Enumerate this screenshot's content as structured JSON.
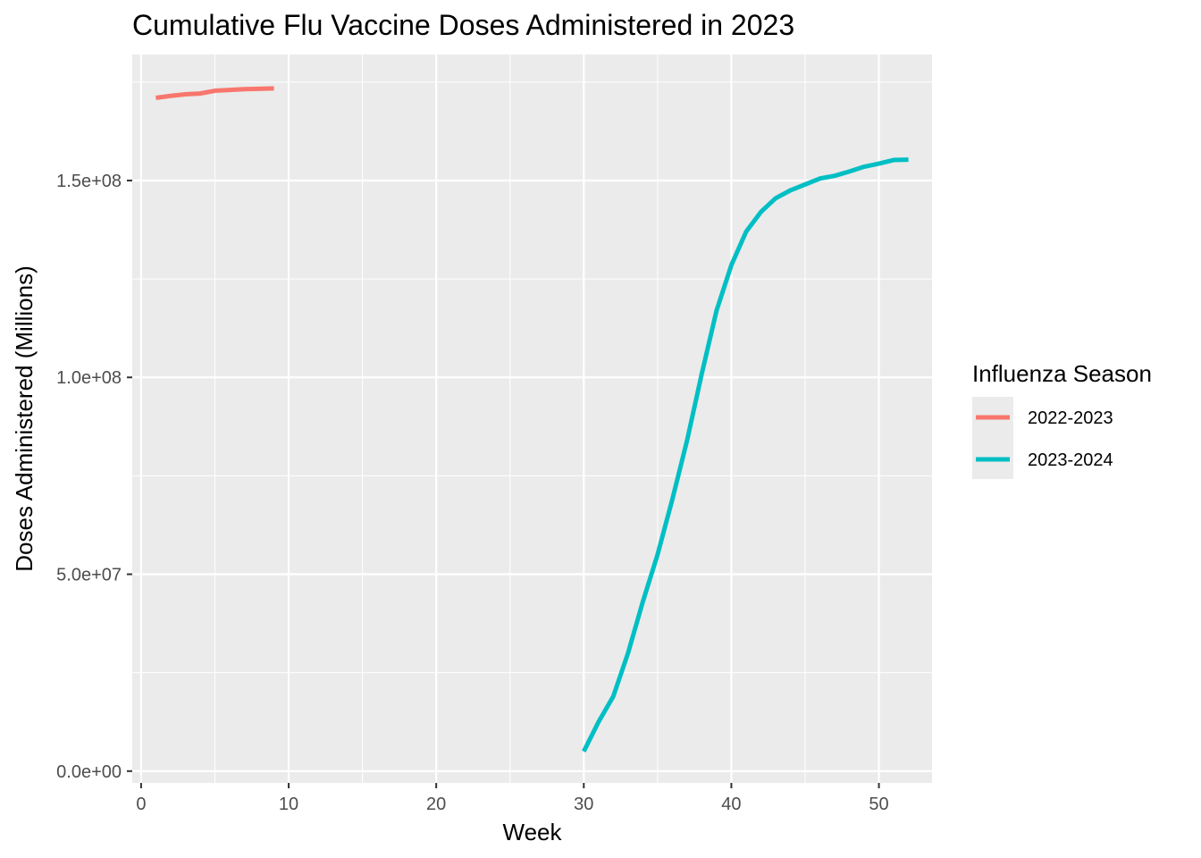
{
  "chart_data": {
    "type": "line",
    "title": "Cumulative Flu Vaccine Doses Administered in 2023",
    "xlabel": "Week",
    "ylabel": "Doses Administered (Millions)",
    "xlim": [
      -0.6,
      53.6
    ],
    "ylim": [
      -3000000,
      182000000
    ],
    "x_ticks": [
      0,
      10,
      20,
      30,
      40,
      50
    ],
    "x_tick_labels": [
      "0",
      "10",
      "20",
      "30",
      "40",
      "50"
    ],
    "y_ticks": [
      0,
      50000000,
      100000000,
      150000000
    ],
    "y_tick_labels": [
      "0.0e+00",
      "5.0e+07",
      "1.0e+08",
      "1.5e+08"
    ],
    "grid": true,
    "legend": {
      "title": "Influenza Season",
      "position": "right"
    },
    "series": [
      {
        "name": "2022-2023",
        "color": "#F8766D",
        "x": [
          1,
          2,
          3,
          4,
          5,
          6,
          7,
          8,
          9
        ],
        "values": [
          171000000,
          171500000,
          171900000,
          172100000,
          172800000,
          173000000,
          173200000,
          173300000,
          173400000
        ]
      },
      {
        "name": "2023-2024",
        "color": "#00BFC4",
        "x": [
          30,
          31,
          32,
          33,
          34,
          35,
          36,
          37,
          38,
          39,
          40,
          41,
          42,
          43,
          44,
          45,
          46,
          47,
          48,
          49,
          50,
          51,
          52
        ],
        "values": [
          5000000,
          12500000,
          19000000,
          30000000,
          43000000,
          55000000,
          69000000,
          84000000,
          101000000,
          117000000,
          128500000,
          137000000,
          142000000,
          145500000,
          147500000,
          149000000,
          150500000,
          151200000,
          152300000,
          153500000,
          154300000,
          155200000,
          155300000
        ]
      }
    ]
  }
}
